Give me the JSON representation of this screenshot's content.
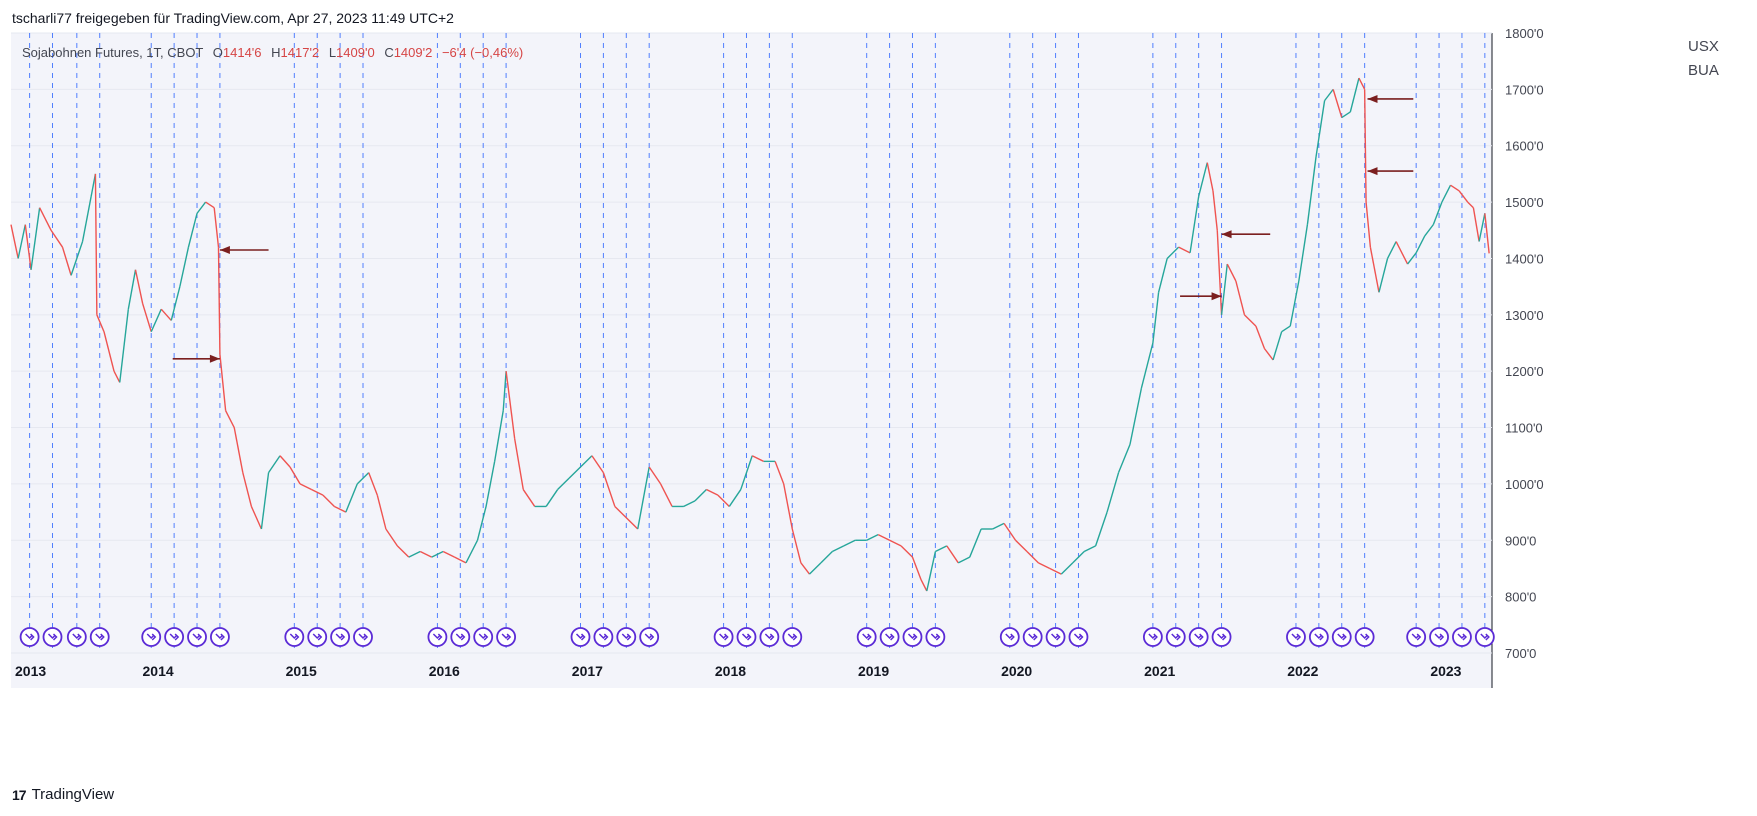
{
  "header": {
    "title": "tscharli77 freigegeben für TradingView.com, Apr 27, 2023 11:49 UTC+2"
  },
  "legend": {
    "symbol": "Sojabohnen Futures, 1T, CBOT",
    "o_label": "O",
    "o_value": "1414'6",
    "h_label": "H",
    "h_value": "1417'2",
    "l_label": "L",
    "l_value": "1409'0",
    "c_label": "C",
    "c_value": "1409'2",
    "change": "−6'4 (−0,46%)"
  },
  "axis_unit": {
    "line1": "USX",
    "line2": "BUA"
  },
  "footer": {
    "brand": "TradingView",
    "logo": "tv-logo-icon"
  },
  "colors": {
    "up": "#26a69a",
    "down": "#ef5350",
    "vline": "#2962ff",
    "arrow": "#7b1f1f",
    "marker": "#5b2bd6"
  },
  "chart_data": {
    "type": "line",
    "instrument": "Sojabohnen Futures, 1T, CBOT",
    "xlim": [
      2013.0,
      2023.35
    ],
    "ylim": [
      700,
      1800
    ],
    "x_ticks": [
      "2013",
      "2014",
      "2015",
      "2016",
      "2017",
      "2018",
      "2019",
      "2020",
      "2021",
      "2022",
      "2023"
    ],
    "y_ticks": [
      "700'0",
      "800'0",
      "900'0",
      "1000'0",
      "1100'0",
      "1200'0",
      "1300'0",
      "1400'0",
      "1500'0",
      "1600'0",
      "1700'0",
      "1800'0"
    ],
    "y_tick_values": [
      700,
      800,
      900,
      1000,
      1100,
      1200,
      1300,
      1400,
      1500,
      1600,
      1700,
      1800
    ],
    "price_points": [
      [
        2013.0,
        1460
      ],
      [
        2013.05,
        1400
      ],
      [
        2013.1,
        1460
      ],
      [
        2013.14,
        1380
      ],
      [
        2013.2,
        1490
      ],
      [
        2013.28,
        1450
      ],
      [
        2013.36,
        1420
      ],
      [
        2013.42,
        1370
      ],
      [
        2013.5,
        1430
      ],
      [
        2013.56,
        1510
      ],
      [
        2013.59,
        1550
      ],
      [
        2013.6,
        1300
      ],
      [
        2013.65,
        1270
      ],
      [
        2013.72,
        1200
      ],
      [
        2013.76,
        1180
      ],
      [
        2013.82,
        1310
      ],
      [
        2013.87,
        1380
      ],
      [
        2013.92,
        1320
      ],
      [
        2013.98,
        1270
      ],
      [
        2014.05,
        1310
      ],
      [
        2014.12,
        1290
      ],
      [
        2014.18,
        1350
      ],
      [
        2014.24,
        1420
      ],
      [
        2014.3,
        1480
      ],
      [
        2014.36,
        1500
      ],
      [
        2014.42,
        1490
      ],
      [
        2014.45,
        1420
      ],
      [
        2014.46,
        1230
      ],
      [
        2014.5,
        1130
      ],
      [
        2014.56,
        1100
      ],
      [
        2014.62,
        1020
      ],
      [
        2014.68,
        960
      ],
      [
        2014.75,
        920
      ],
      [
        2014.8,
        1020
      ],
      [
        2014.88,
        1050
      ],
      [
        2014.95,
        1030
      ],
      [
        2015.02,
        1000
      ],
      [
        2015.1,
        990
      ],
      [
        2015.18,
        980
      ],
      [
        2015.26,
        960
      ],
      [
        2015.34,
        950
      ],
      [
        2015.42,
        1000
      ],
      [
        2015.5,
        1020
      ],
      [
        2015.56,
        980
      ],
      [
        2015.62,
        920
      ],
      [
        2015.7,
        890
      ],
      [
        2015.78,
        870
      ],
      [
        2015.86,
        880
      ],
      [
        2015.94,
        870
      ],
      [
        2016.02,
        880
      ],
      [
        2016.1,
        870
      ],
      [
        2016.18,
        860
      ],
      [
        2016.26,
        900
      ],
      [
        2016.32,
        960
      ],
      [
        2016.38,
        1040
      ],
      [
        2016.44,
        1130
      ],
      [
        2016.46,
        1200
      ],
      [
        2016.52,
        1080
      ],
      [
        2016.58,
        990
      ],
      [
        2016.66,
        960
      ],
      [
        2016.74,
        960
      ],
      [
        2016.82,
        990
      ],
      [
        2016.9,
        1010
      ],
      [
        2016.98,
        1030
      ],
      [
        2017.06,
        1050
      ],
      [
        2017.14,
        1020
      ],
      [
        2017.22,
        960
      ],
      [
        2017.3,
        940
      ],
      [
        2017.38,
        920
      ],
      [
        2017.46,
        1030
      ],
      [
        2017.54,
        1000
      ],
      [
        2017.62,
        960
      ],
      [
        2017.7,
        960
      ],
      [
        2017.78,
        970
      ],
      [
        2017.86,
        990
      ],
      [
        2017.94,
        980
      ],
      [
        2018.02,
        960
      ],
      [
        2018.1,
        990
      ],
      [
        2018.18,
        1050
      ],
      [
        2018.26,
        1040
      ],
      [
        2018.34,
        1040
      ],
      [
        2018.4,
        1000
      ],
      [
        2018.46,
        920
      ],
      [
        2018.52,
        860
      ],
      [
        2018.58,
        840
      ],
      [
        2018.66,
        860
      ],
      [
        2018.74,
        880
      ],
      [
        2018.82,
        890
      ],
      [
        2018.9,
        900
      ],
      [
        2018.98,
        900
      ],
      [
        2019.06,
        910
      ],
      [
        2019.14,
        900
      ],
      [
        2019.22,
        890
      ],
      [
        2019.3,
        870
      ],
      [
        2019.36,
        830
      ],
      [
        2019.4,
        810
      ],
      [
        2019.46,
        880
      ],
      [
        2019.54,
        890
      ],
      [
        2019.62,
        860
      ],
      [
        2019.7,
        870
      ],
      [
        2019.78,
        920
      ],
      [
        2019.86,
        920
      ],
      [
        2019.94,
        930
      ],
      [
        2020.02,
        900
      ],
      [
        2020.1,
        880
      ],
      [
        2020.18,
        860
      ],
      [
        2020.26,
        850
      ],
      [
        2020.34,
        840
      ],
      [
        2020.42,
        860
      ],
      [
        2020.5,
        880
      ],
      [
        2020.58,
        890
      ],
      [
        2020.66,
        950
      ],
      [
        2020.74,
        1020
      ],
      [
        2020.82,
        1070
      ],
      [
        2020.9,
        1170
      ],
      [
        2020.98,
        1250
      ],
      [
        2021.02,
        1340
      ],
      [
        2021.08,
        1400
      ],
      [
        2021.16,
        1420
      ],
      [
        2021.24,
        1410
      ],
      [
        2021.3,
        1510
      ],
      [
        2021.36,
        1570
      ],
      [
        2021.4,
        1520
      ],
      [
        2021.43,
        1450
      ],
      [
        2021.46,
        1300
      ],
      [
        2021.5,
        1390
      ],
      [
        2021.56,
        1360
      ],
      [
        2021.62,
        1300
      ],
      [
        2021.7,
        1280
      ],
      [
        2021.76,
        1240
      ],
      [
        2021.82,
        1220
      ],
      [
        2021.88,
        1270
      ],
      [
        2021.94,
        1280
      ],
      [
        2022.0,
        1360
      ],
      [
        2022.06,
        1460
      ],
      [
        2022.12,
        1580
      ],
      [
        2022.18,
        1680
      ],
      [
        2022.24,
        1700
      ],
      [
        2022.3,
        1650
      ],
      [
        2022.36,
        1660
      ],
      [
        2022.42,
        1720
      ],
      [
        2022.46,
        1700
      ],
      [
        2022.47,
        1500
      ],
      [
        2022.5,
        1420
      ],
      [
        2022.56,
        1340
      ],
      [
        2022.62,
        1400
      ],
      [
        2022.68,
        1430
      ],
      [
        2022.76,
        1390
      ],
      [
        2022.82,
        1410
      ],
      [
        2022.88,
        1440
      ],
      [
        2022.94,
        1460
      ],
      [
        2023.0,
        1500
      ],
      [
        2023.06,
        1530
      ],
      [
        2023.12,
        1520
      ],
      [
        2023.18,
        1500
      ],
      [
        2023.22,
        1490
      ],
      [
        2023.26,
        1430
      ],
      [
        2023.3,
        1480
      ],
      [
        2023.33,
        1409
      ]
    ],
    "vertical_lines_x": [
      2013.13,
      2013.29,
      2013.46,
      2013.62,
      2013.98,
      2014.14,
      2014.3,
      2014.46,
      2014.98,
      2015.14,
      2015.3,
      2015.46,
      2015.98,
      2016.14,
      2016.3,
      2016.46,
      2016.98,
      2017.14,
      2017.3,
      2017.46,
      2017.98,
      2018.14,
      2018.3,
      2018.46,
      2018.98,
      2019.14,
      2019.3,
      2019.46,
      2019.98,
      2020.14,
      2020.3,
      2020.46,
      2020.98,
      2021.14,
      2021.3,
      2021.46,
      2021.98,
      2022.14,
      2022.3,
      2022.46,
      2022.82,
      2022.98,
      2023.14,
      2023.3
    ],
    "annotations": [
      {
        "type": "arrow-left",
        "x_from": 2014.8,
        "x_to": 2014.46,
        "y": 1415
      },
      {
        "type": "arrow-right",
        "x_from": 2014.13,
        "x_to": 2014.46,
        "y": 1222
      },
      {
        "type": "arrow-left",
        "x_from": 2021.8,
        "x_to": 2021.46,
        "y": 1443
      },
      {
        "type": "arrow-right",
        "x_from": 2021.17,
        "x_to": 2021.46,
        "y": 1333
      },
      {
        "type": "arrow-left",
        "x_from": 2022.8,
        "x_to": 2022.48,
        "y": 1683
      },
      {
        "type": "arrow-left",
        "x_from": 2022.8,
        "x_to": 2022.48,
        "y": 1555
      }
    ],
    "grid": true
  }
}
